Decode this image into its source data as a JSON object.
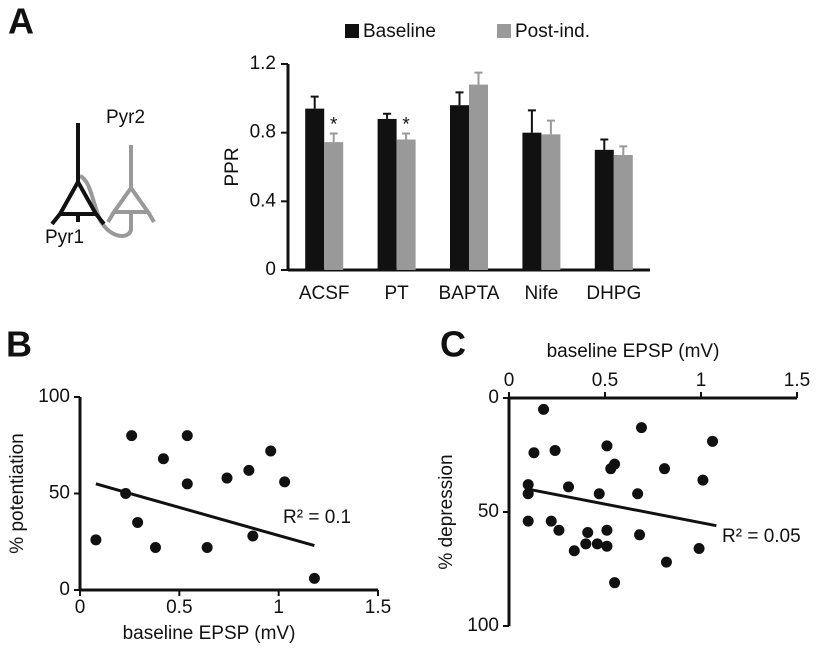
{
  "panels": [
    "A",
    "B",
    "C"
  ],
  "diagram": {
    "labels": [
      "Pyr2",
      "Pyr1"
    ]
  },
  "chart_data": [
    {
      "type": "bar",
      "ylabel": "PPR",
      "categories": [
        "ACSF",
        "PT",
        "BAPTA",
        "Nife",
        "DHPG"
      ],
      "series": [
        {
          "name": "Baseline",
          "color": "#111111",
          "values": [
            0.94,
            0.88,
            0.96,
            0.8,
            0.7
          ],
          "errors": [
            0.07,
            0.03,
            0.075,
            0.13,
            0.06
          ]
        },
        {
          "name": "Post-ind.",
          "color": "#999999",
          "values": [
            0.745,
            0.76,
            1.08,
            0.79,
            0.67
          ],
          "errors": [
            0.05,
            0.035,
            0.07,
            0.08,
            0.05
          ],
          "markers": [
            "*",
            "*",
            null,
            null,
            null
          ]
        }
      ],
      "ylim": [
        0,
        1.2
      ],
      "yticks": [
        0,
        0.4,
        0.8,
        1.2
      ]
    },
    {
      "type": "scatter",
      "xlabel": "baseline EPSP (mV)",
      "ylabel": "% potentiation",
      "color": "#111111",
      "x": [
        0.08,
        0.23,
        0.26,
        0.29,
        0.38,
        0.42,
        0.54,
        0.54,
        0.64,
        0.74,
        0.85,
        0.87,
        0.96,
        1.03,
        1.18
      ],
      "values": [
        26,
        50,
        80,
        35,
        22,
        68,
        80,
        55,
        22,
        58,
        62,
        28,
        72,
        56,
        6
      ],
      "trendline": {
        "x": [
          0.08,
          1.18
        ],
        "y": [
          55,
          23
        ],
        "label": "R² = 0.1"
      },
      "xlim": [
        0,
        1.5
      ],
      "xticks": [
        0,
        0.5,
        1,
        1.5
      ],
      "ylim": [
        0,
        100
      ],
      "yticks": [
        0,
        50,
        100
      ],
      "x_axis_position": "bottom",
      "y_inverted": false
    },
    {
      "type": "scatter",
      "xlabel": "baseline EPSP (mV)",
      "ylabel": "% depression",
      "color": "#111111",
      "x": [
        0.18,
        0.13,
        0.24,
        0.1,
        0.1,
        0.1,
        0.22,
        0.26,
        0.31,
        0.34,
        0.4,
        0.41,
        0.46,
        0.51,
        0.51,
        0.47,
        0.51,
        0.53,
        0.55,
        0.55,
        0.69,
        0.68,
        0.67,
        0.81,
        0.82,
        1.01,
        1.06,
        0.99
      ],
      "values": [
        5,
        24,
        23,
        38,
        42,
        54,
        54,
        58,
        39,
        67,
        64,
        59,
        64,
        65,
        58,
        42,
        21,
        31,
        29,
        81,
        13,
        60,
        42,
        31,
        72,
        36,
        19,
        66
      ],
      "trendline": {
        "x": [
          0.1,
          1.08
        ],
        "y": [
          40,
          56
        ],
        "label": "R² = 0.05"
      },
      "xlim": [
        0,
        1.5
      ],
      "xticks": [
        0,
        0.5,
        1,
        1.5
      ],
      "ylim": [
        0,
        100
      ],
      "yticks": [
        0,
        50,
        100
      ],
      "x_axis_position": "top",
      "y_inverted": true
    }
  ]
}
